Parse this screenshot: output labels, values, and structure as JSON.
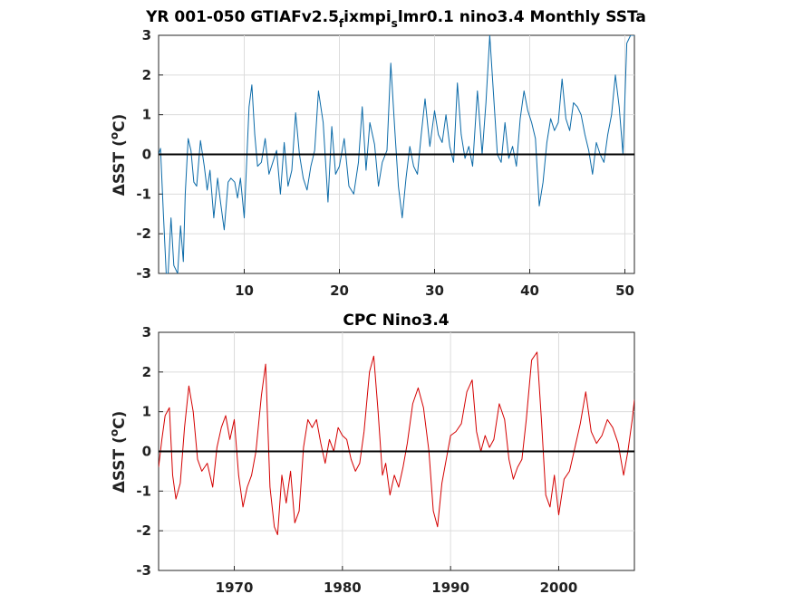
{
  "chart_data": [
    {
      "type": "line",
      "title": "YR 001-050 GTIAFv2.5_f ixmpi_s lmr0.1 nino3.4 Monthly SSTa",
      "title_parts": {
        "a": "YR 001-050 GTIAFv2.5",
        "sub1": "f",
        "b": "ixmpi",
        "sub2": "s",
        "c": "lmr0.1 nino3.4 Monthly SSTa"
      },
      "ylabel": "ΔSST (°C)",
      "ylabel_parts": {
        "a": "ΔSST (",
        "sup": "o",
        "b": "C)"
      },
      "xlim": [
        1,
        51
      ],
      "ylim": [
        -3,
        3
      ],
      "xticks": [
        "10",
        "20",
        "30",
        "40",
        "50"
      ],
      "yticks": [
        "3",
        "2",
        "1",
        "0",
        "-1",
        "-2",
        "-3"
      ],
      "grid": true,
      "series": [
        {
          "color": "#0b6aa8",
          "x": [
            1.0,
            1.2,
            1.5,
            1.8,
            2.0,
            2.3,
            2.6,
            3.0,
            3.3,
            3.6,
            3.8,
            4.1,
            4.4,
            4.7,
            5.0,
            5.4,
            5.8,
            6.1,
            6.4,
            6.8,
            7.2,
            7.5,
            7.9,
            8.3,
            8.6,
            9.0,
            9.3,
            9.6,
            10.0,
            10.5,
            10.8,
            11.1,
            11.4,
            11.8,
            12.2,
            12.6,
            13.0,
            13.4,
            13.8,
            14.2,
            14.6,
            15.0,
            15.4,
            15.8,
            16.2,
            16.6,
            17.0,
            17.4,
            17.8,
            18.3,
            18.8,
            19.2,
            19.6,
            20.0,
            20.5,
            21.0,
            21.5,
            22.0,
            22.4,
            22.8,
            23.2,
            23.7,
            24.1,
            24.5,
            25.0,
            25.4,
            25.8,
            26.2,
            26.6,
            27.0,
            27.4,
            27.8,
            28.2,
            28.6,
            29.0,
            29.5,
            30.0,
            30.4,
            30.8,
            31.2,
            31.6,
            32.0,
            32.4,
            32.8,
            33.2,
            33.6,
            34.0,
            34.5,
            35.0,
            35.4,
            35.8,
            36.2,
            36.6,
            37.0,
            37.4,
            37.8,
            38.2,
            38.6,
            39.0,
            39.4,
            39.8,
            40.2,
            40.6,
            41.0,
            41.4,
            41.8,
            42.2,
            42.6,
            43.0,
            43.4,
            43.8,
            44.2,
            44.6,
            45.0,
            45.4,
            45.8,
            46.2,
            46.6,
            47.0,
            47.4,
            47.8,
            48.2,
            48.6,
            49.0,
            49.4,
            49.8,
            50.2,
            50.6,
            51.0
          ],
          "y": [
            0.0,
            0.15,
            -1.5,
            -3.0,
            -3.0,
            -1.6,
            -2.8,
            -3.0,
            -1.8,
            -2.7,
            -1.0,
            0.4,
            0.1,
            -0.7,
            -0.8,
            0.35,
            -0.3,
            -0.9,
            -0.4,
            -1.6,
            -0.6,
            -1.2,
            -1.9,
            -0.7,
            -0.6,
            -0.7,
            -1.1,
            -0.6,
            -1.6,
            1.2,
            1.75,
            0.5,
            -0.3,
            -0.2,
            0.4,
            -0.5,
            -0.2,
            0.1,
            -1.0,
            0.3,
            -0.8,
            -0.4,
            1.05,
            0.0,
            -0.6,
            -0.9,
            -0.3,
            0.1,
            1.6,
            0.8,
            -1.2,
            0.7,
            -0.5,
            -0.3,
            0.4,
            -0.8,
            -1.0,
            -0.2,
            1.2,
            -0.4,
            0.8,
            0.25,
            -0.8,
            -0.2,
            0.1,
            2.3,
            0.7,
            -0.8,
            -1.6,
            -0.6,
            0.2,
            -0.3,
            -0.5,
            0.5,
            1.4,
            0.2,
            1.1,
            0.5,
            0.3,
            1.0,
            0.2,
            -0.2,
            1.8,
            0.5,
            -0.1,
            0.2,
            -0.3,
            1.6,
            0.0,
            1.3,
            3.0,
            1.5,
            0.0,
            -0.2,
            0.8,
            -0.1,
            0.2,
            -0.3,
            0.9,
            1.6,
            1.1,
            0.8,
            0.4,
            -1.3,
            -0.7,
            0.3,
            0.9,
            0.6,
            0.8,
            1.9,
            0.9,
            0.6,
            1.3,
            1.2,
            1.0,
            0.5,
            0.1,
            -0.5,
            0.3,
            0.0,
            -0.2,
            0.5,
            1.0,
            2.0,
            1.2,
            0.0,
            2.8,
            3.0,
            3.0
          ]
        }
      ]
    },
    {
      "type": "line",
      "title": "CPC Nino3.4",
      "ylabel": "ΔSST (°C)",
      "ylabel_parts": {
        "a": "ΔSST (",
        "sup": "o",
        "b": "C)"
      },
      "xlim": [
        1963,
        2007
      ],
      "ylim": [
        -3,
        3
      ],
      "xticks": [
        "1970",
        "1980",
        "1990",
        "2000"
      ],
      "yticks": [
        "3",
        "2",
        "1",
        "0",
        "-1",
        "-2",
        "-3"
      ],
      "grid": true,
      "series": [
        {
          "color": "#d40000",
          "x": [
            1963.0,
            1963.3,
            1963.6,
            1964.0,
            1964.3,
            1964.6,
            1965.0,
            1965.4,
            1965.8,
            1966.2,
            1966.6,
            1967.0,
            1967.5,
            1968.0,
            1968.4,
            1968.8,
            1969.2,
            1969.6,
            1970.0,
            1970.4,
            1970.8,
            1971.2,
            1971.6,
            1972.0,
            1972.5,
            1972.9,
            1973.3,
            1973.7,
            1974.0,
            1974.4,
            1974.8,
            1975.2,
            1975.6,
            1976.0,
            1976.4,
            1976.8,
            1977.2,
            1977.6,
            1978.0,
            1978.4,
            1978.8,
            1979.2,
            1979.6,
            1980.0,
            1980.4,
            1980.8,
            1981.2,
            1981.6,
            1982.0,
            1982.5,
            1982.9,
            1983.3,
            1983.7,
            1984.0,
            1984.4,
            1984.8,
            1985.2,
            1985.6,
            1986.0,
            1986.5,
            1987.0,
            1987.5,
            1988.0,
            1988.4,
            1988.8,
            1989.2,
            1989.6,
            1990.0,
            1990.5,
            1991.0,
            1991.5,
            1992.0,
            1992.4,
            1992.8,
            1993.2,
            1993.6,
            1994.0,
            1994.5,
            1995.0,
            1995.4,
            1995.8,
            1996.2,
            1996.6,
            1997.0,
            1997.5,
            1998.0,
            1998.4,
            1998.8,
            1999.2,
            1999.6,
            2000.0,
            2000.5,
            2001.0,
            2001.5,
            2002.0,
            2002.5,
            2003.0,
            2003.5,
            2004.0,
            2004.5,
            2005.0,
            2005.5,
            2006.0,
            2006.4,
            2006.8,
            2007.0
          ],
          "y": [
            -0.4,
            0.3,
            0.9,
            1.1,
            -0.6,
            -1.2,
            -0.8,
            0.6,
            1.65,
            1.0,
            -0.2,
            -0.5,
            -0.3,
            -0.9,
            0.1,
            0.6,
            0.9,
            0.3,
            0.8,
            -0.6,
            -1.4,
            -0.9,
            -0.6,
            0.0,
            1.4,
            2.2,
            -0.9,
            -1.9,
            -2.1,
            -0.6,
            -1.3,
            -0.5,
            -1.8,
            -1.5,
            0.1,
            0.8,
            0.6,
            0.8,
            0.2,
            -0.3,
            0.3,
            0.0,
            0.6,
            0.4,
            0.3,
            -0.2,
            -0.5,
            -0.3,
            0.5,
            2.0,
            2.4,
            1.0,
            -0.6,
            -0.3,
            -1.1,
            -0.6,
            -0.9,
            -0.4,
            0.2,
            1.2,
            1.6,
            1.1,
            0.0,
            -1.5,
            -1.9,
            -0.8,
            -0.2,
            0.4,
            0.5,
            0.7,
            1.5,
            1.8,
            0.5,
            0.0,
            0.4,
            0.1,
            0.3,
            1.2,
            0.8,
            -0.2,
            -0.7,
            -0.4,
            -0.2,
            0.8,
            2.3,
            2.5,
            0.8,
            -1.1,
            -1.4,
            -0.6,
            -1.6,
            -0.7,
            -0.5,
            0.1,
            0.7,
            1.5,
            0.5,
            0.2,
            0.4,
            0.8,
            0.6,
            0.2,
            -0.6,
            0.0,
            0.8,
            1.3
          ]
        }
      ]
    }
  ]
}
